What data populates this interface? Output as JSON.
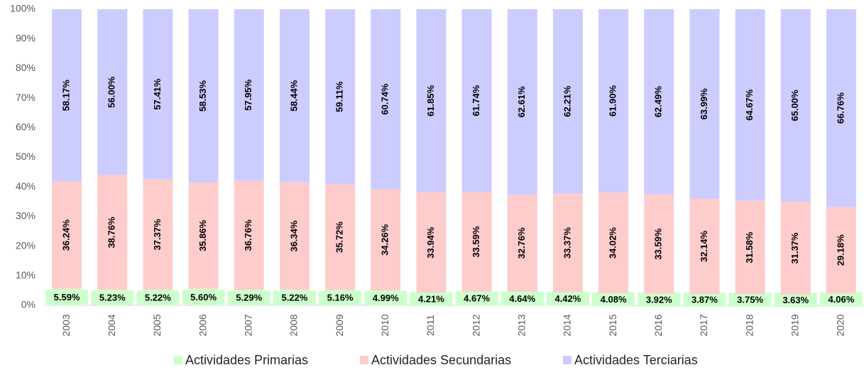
{
  "chart_data": {
    "type": "stacked_bar",
    "categories": [
      "2003",
      "2004",
      "2005",
      "2006",
      "2007",
      "2008",
      "2009",
      "2010",
      "2011",
      "2012",
      "2013",
      "2014",
      "2015",
      "2016",
      "2017",
      "2018",
      "2019",
      "2020"
    ],
    "series": [
      {
        "name": "Actividades Primarias",
        "color": "#ccffcc",
        "values": [
          5.59,
          5.23,
          5.22,
          5.6,
          5.29,
          5.22,
          5.16,
          4.99,
          4.21,
          4.67,
          4.64,
          4.42,
          4.08,
          3.92,
          3.87,
          3.75,
          3.63,
          4.06
        ],
        "value_labels": [
          "5.59%",
          "5.23%",
          "5.22%",
          "5.60%",
          "5.29%",
          "5.22%",
          "5.16%",
          "4.99%",
          "4.21%",
          "4.67%",
          "4.64%",
          "4.42%",
          "4.08%",
          "3.92%",
          "3.87%",
          "3.75%",
          "3.63%",
          "4.06%"
        ]
      },
      {
        "name": "Actividades Secundarias",
        "color": "#ffcccc",
        "values": [
          36.24,
          38.76,
          37.37,
          35.86,
          36.76,
          36.34,
          35.72,
          34.26,
          33.94,
          33.59,
          32.76,
          33.37,
          34.02,
          33.59,
          32.14,
          31.58,
          31.37,
          29.18
        ],
        "value_labels": [
          "36.24%",
          "38.76%",
          "37.37%",
          "35.86%",
          "36.76%",
          "36.34%",
          "35.72%",
          "34.26%",
          "33.94%",
          "33.59%",
          "32.76%",
          "33.37%",
          "34.02%",
          "33.59%",
          "32.14%",
          "31.58%",
          "31.37%",
          "29.18%"
        ]
      },
      {
        "name": "Actividades Terciarias",
        "color": "#ccccff",
        "values": [
          58.17,
          56.0,
          57.41,
          58.53,
          57.95,
          58.44,
          59.11,
          60.74,
          61.85,
          61.74,
          62.61,
          62.21,
          61.9,
          62.49,
          63.99,
          64.67,
          65.0,
          66.76
        ],
        "value_labels": [
          "58.17%",
          "56.00%",
          "57.41%",
          "58.53%",
          "57.95%",
          "58.44%",
          "59.11%",
          "60.74%",
          "61.85%",
          "61.74%",
          "62.61%",
          "62.21%",
          "61.90%",
          "62.49%",
          "63.99%",
          "64.67%",
          "65.00%",
          "66.76%"
        ]
      }
    ],
    "ylim": [
      0,
      100
    ],
    "yticks": [
      {
        "value": 0,
        "label": "0%"
      },
      {
        "value": 10,
        "label": "10%"
      },
      {
        "value": 20,
        "label": "20%"
      },
      {
        "value": 30,
        "label": "30%"
      },
      {
        "value": 40,
        "label": "40%"
      },
      {
        "value": 50,
        "label": "50%"
      },
      {
        "value": 60,
        "label": "60%"
      },
      {
        "value": 70,
        "label": "70%"
      },
      {
        "value": 80,
        "label": "80%"
      },
      {
        "value": 90,
        "label": "90%"
      },
      {
        "value": 100,
        "label": "100%"
      }
    ],
    "legend": "bottom"
  }
}
